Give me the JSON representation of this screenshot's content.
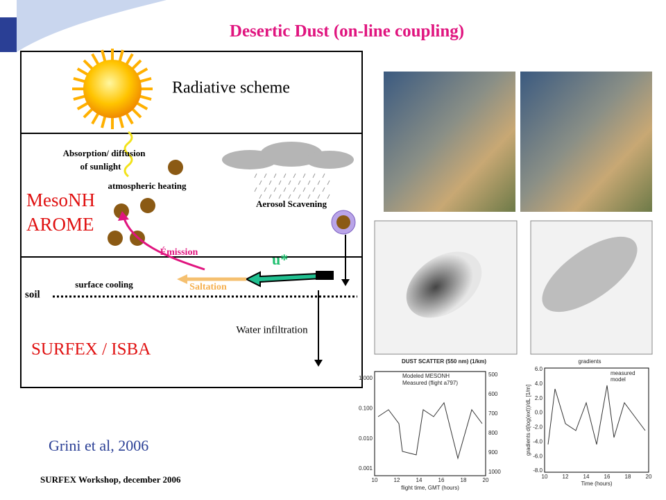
{
  "title": "Desertic Dust (on-line coupling)",
  "diagram": {
    "radiative": "Radiative scheme",
    "absorption": [
      "Absorption/ diffusion",
      "of sunlight"
    ],
    "heating": "atmospheric heating",
    "scavenging": "Aerosol Scavening",
    "model_names": [
      "MesoNH",
      "AROME"
    ],
    "emission": "Émission",
    "ustar": "u*",
    "soil": "soil",
    "cooling": "surface cooling",
    "saltation": "Saltation",
    "infiltration": "Water infiltration",
    "surface": "SURFEX / ISBA"
  },
  "citation": "Grini et al, 2006",
  "footer": "SURFEX Workshop, december 2006",
  "figures": {
    "map_caption": "DUST SCATTER (550 nm) (1/km)",
    "map_caption2": "gradients",
    "left_plot": {
      "legend": [
        "Modeled MESONH",
        "Measured (flight a797)"
      ],
      "xlabel": "flight time, GMT (hours)",
      "xticks": [
        "10",
        "12",
        "14",
        "16",
        "18",
        "20"
      ],
      "yticks": [
        "1.000",
        "0.100",
        "0.010",
        "0.001"
      ],
      "y2ticks": [
        "500",
        "600",
        "700",
        "800",
        "900",
        "1000"
      ]
    },
    "right_plot": {
      "legend": [
        "measured",
        "model"
      ],
      "xlabel": "Time (hours)",
      "ylabel": "gradients d(log(ext))/dL [1/m]",
      "xticks": [
        "10",
        "12",
        "14",
        "16",
        "18",
        "20"
      ],
      "yticks": [
        "6.0",
        "4.0",
        "2.0",
        "0.0",
        "-2.0",
        "-4.0",
        "-6.0",
        "-8.0"
      ]
    }
  }
}
